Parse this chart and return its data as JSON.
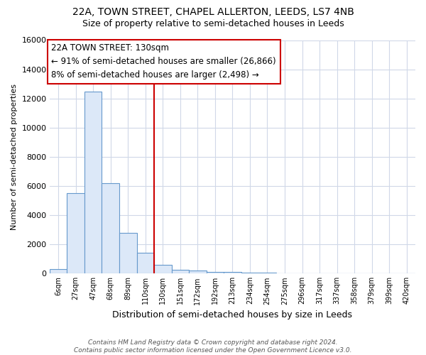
{
  "title": "22A, TOWN STREET, CHAPEL ALLERTON, LEEDS, LS7 4NB",
  "subtitle": "Size of property relative to semi-detached houses in Leeds",
  "xlabel": "Distribution of semi-detached houses by size in Leeds",
  "ylabel": "Number of semi-detached properties",
  "categories": [
    "6sqm",
    "27sqm",
    "47sqm",
    "68sqm",
    "89sqm",
    "110sqm",
    "130sqm",
    "151sqm",
    "172sqm",
    "192sqm",
    "213sqm",
    "234sqm",
    "254sqm",
    "275sqm",
    "296sqm",
    "317sqm",
    "337sqm",
    "358sqm",
    "379sqm",
    "399sqm",
    "420sqm"
  ],
  "values": [
    270,
    5500,
    12450,
    6200,
    2800,
    1400,
    600,
    250,
    175,
    100,
    75,
    50,
    25,
    0,
    0,
    0,
    0,
    0,
    0,
    0,
    0
  ],
  "bar_color": "#dce8f8",
  "bar_edge_color": "#6699cc",
  "red_line_index": 6,
  "annotation_text": "22A TOWN STREET: 130sqm\n← 91% of semi-detached houses are smaller (26,866)\n8% of semi-detached houses are larger (2,498) →",
  "ylim": [
    0,
    16000
  ],
  "yticks": [
    0,
    2000,
    4000,
    6000,
    8000,
    10000,
    12000,
    14000,
    16000
  ],
  "background_color": "#ffffff",
  "grid_color": "#d0d8e8",
  "footer": "Contains HM Land Registry data © Crown copyright and database right 2024.\nContains public sector information licensed under the Open Government Licence v3.0.",
  "title_fontsize": 10,
  "subtitle_fontsize": 9,
  "annotation_box_color": "#ffffff",
  "annotation_border_color": "#cc0000",
  "annotation_fontsize": 8.5
}
